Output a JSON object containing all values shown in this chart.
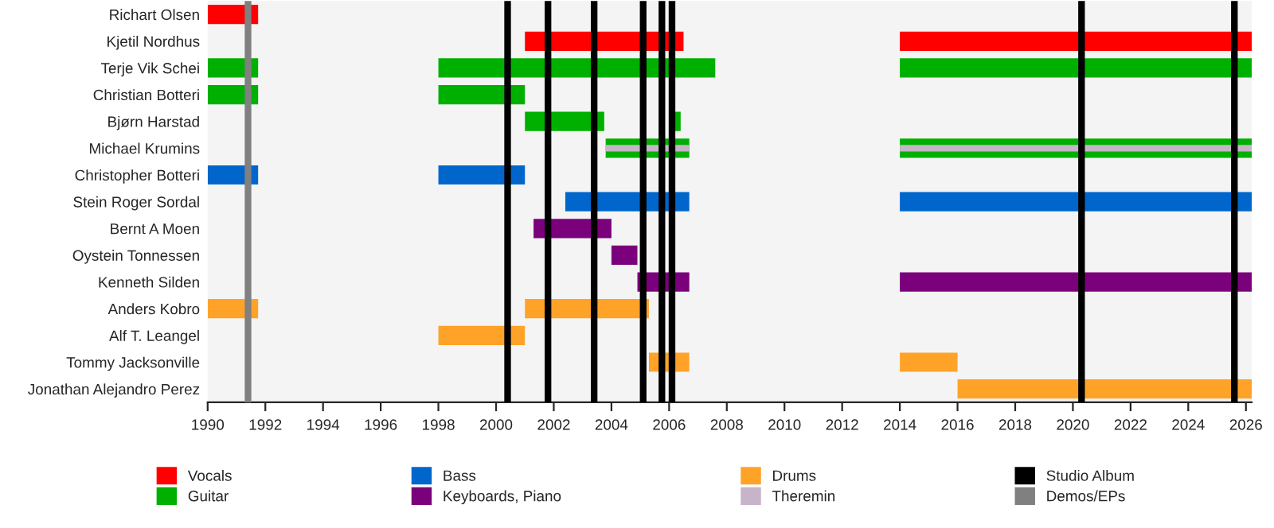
{
  "chart_data": {
    "type": "bar",
    "orientation": "horizontal",
    "categories": [
      "Richart Olsen",
      "Kjetil Nordhus",
      "Terje Vik Schei",
      "Christian Botteri",
      "Bjørn Harstad",
      "Michael Krumins",
      "Christopher Botteri",
      "Stein Roger Sordal",
      "Bernt A Moen",
      "Oystein Tonnessen",
      "Kenneth Silden",
      "Anders Kobro",
      "Alf T. Leangel",
      "Tommy Jacksonville",
      "Jonathan Alejandro Perez"
    ],
    "series": [
      {
        "name": "Vocals",
        "color": "#ff0000",
        "base": [
          1990,
          2001.0,
          null,
          null,
          null,
          null,
          null,
          null,
          null,
          null,
          null,
          null,
          null,
          null,
          null
        ],
        "values": [
          1.75,
          5.5,
          null,
          null,
          null,
          null,
          null,
          null,
          null,
          null,
          null,
          null,
          null,
          null,
          null
        ]
      },
      {
        "name": "Guitar",
        "color": "#00b000",
        "base": [
          null,
          null,
          1990,
          1990,
          2001.0,
          2003.8,
          null,
          null,
          null,
          null,
          null,
          null,
          null,
          null,
          null
        ],
        "values": [
          null,
          null,
          1.75,
          1.75,
          2.75,
          2.9,
          null,
          null,
          null,
          null,
          null,
          null,
          null,
          null,
          null
        ]
      },
      {
        "name": "Bass",
        "color": "#0066cc",
        "base": [
          null,
          null,
          null,
          null,
          null,
          null,
          1990,
          2002.4,
          null,
          null,
          null,
          null,
          null,
          null,
          null
        ],
        "values": [
          null,
          null,
          null,
          null,
          null,
          null,
          1.75,
          4.3,
          null,
          null,
          null,
          null,
          null,
          null,
          null
        ]
      },
      {
        "name": "Keyboards, Piano",
        "color": "#7b007b",
        "base": [
          null,
          null,
          null,
          null,
          null,
          null,
          null,
          null,
          2001.3,
          2004.0,
          2004.9,
          null,
          null,
          null,
          null
        ],
        "values": [
          null,
          null,
          null,
          null,
          null,
          null,
          null,
          null,
          2.7,
          0.9,
          1.8,
          null,
          null,
          null,
          null
        ]
      },
      {
        "name": "Drums",
        "color": "#ffa328",
        "base": [
          null,
          null,
          null,
          null,
          null,
          null,
          null,
          null,
          null,
          null,
          null,
          1990,
          1998.0,
          2005.3,
          2016.0
        ],
        "values": [
          null,
          null,
          null,
          null,
          null,
          null,
          null,
          null,
          null,
          null,
          null,
          1.75,
          3.0,
          1.4,
          10.2
        ]
      },
      {
        "name": "Theremin",
        "color": "#c8b4c8",
        "base": [
          null,
          null,
          null,
          null,
          null,
          2003.8,
          null,
          null,
          null,
          null,
          null,
          null,
          null,
          null,
          null
        ],
        "values": [
          null,
          null,
          null,
          null,
          null,
          2.9,
          null,
          null,
          null,
          null,
          null,
          null,
          null,
          null,
          null
        ]
      },
      {
        "color": "#ff0000",
        "base": [
          null,
          2014.0,
          null,
          null,
          null,
          null,
          null,
          null,
          null,
          null,
          null,
          null,
          null,
          null,
          null
        ],
        "values": [
          null,
          12.2,
          null,
          null,
          null,
          null,
          null,
          null,
          null,
          null,
          null,
          null,
          null,
          null,
          null
        ]
      },
      {
        "color": "#00b000",
        "base": [
          null,
          null,
          1998.0,
          1998.0,
          2006.1,
          2014.0,
          null,
          null,
          null,
          null,
          null,
          null,
          null,
          null,
          null
        ],
        "values": [
          null,
          null,
          9.6,
          3.0,
          0.3,
          12.2,
          null,
          null,
          null,
          null,
          null,
          null,
          null,
          null,
          null
        ]
      },
      {
        "color": "#00b000",
        "base": [
          null,
          null,
          2014.0,
          null,
          null,
          null,
          null,
          null,
          null,
          null,
          null,
          null,
          null,
          null,
          null
        ],
        "values": [
          null,
          null,
          12.2,
          null,
          null,
          null,
          null,
          null,
          null,
          null,
          null,
          null,
          null,
          null,
          null
        ]
      },
      {
        "color": "#0066cc",
        "base": [
          null,
          null,
          null,
          null,
          null,
          null,
          1998.0,
          2014.0,
          null,
          null,
          null,
          null,
          null,
          null,
          null
        ],
        "values": [
          null,
          null,
          null,
          null,
          null,
          null,
          3.0,
          12.2,
          null,
          null,
          null,
          null,
          null,
          null,
          null
        ]
      },
      {
        "color": "#7b007b",
        "base": [
          null,
          null,
          null,
          null,
          null,
          null,
          null,
          null,
          null,
          null,
          2014.0,
          null,
          null,
          null,
          null
        ],
        "values": [
          null,
          null,
          null,
          null,
          null,
          null,
          null,
          null,
          null,
          null,
          12.2,
          null,
          null,
          null,
          null
        ]
      },
      {
        "color": "#ffa328",
        "base": [
          null,
          null,
          null,
          null,
          null,
          null,
          null,
          null,
          null,
          null,
          null,
          2001.0,
          null,
          2014.0,
          null
        ],
        "values": [
          null,
          null,
          null,
          null,
          null,
          null,
          null,
          null,
          null,
          null,
          null,
          4.3,
          null,
          2.0,
          null
        ]
      },
      {
        "color": "#c8b4c8",
        "base": [
          null,
          null,
          null,
          null,
          null,
          2014.0,
          null,
          null,
          null,
          null,
          null,
          null,
          null,
          null,
          null
        ],
        "values": [
          null,
          null,
          null,
          null,
          null,
          12.2,
          null,
          null,
          null,
          null,
          null,
          null,
          null,
          null,
          null
        ]
      }
    ],
    "ref_lines": [
      {
        "axis": "x",
        "value": 1991.4,
        "label": "Demos/EPs",
        "color": "#808080"
      },
      {
        "axis": "x",
        "value": 2000.4,
        "label": "Studio Album",
        "color": "#000000"
      },
      {
        "axis": "x",
        "value": 2001.8,
        "color": "#000000"
      },
      {
        "axis": "x",
        "value": 2003.4,
        "color": "#000000"
      },
      {
        "axis": "x",
        "value": 2005.1,
        "color": "#000000"
      },
      {
        "axis": "x",
        "value": 2005.75,
        "color": "#000000"
      },
      {
        "axis": "x",
        "value": 2006.1,
        "color": "#000000"
      },
      {
        "axis": "x",
        "value": 2020.3,
        "color": "#000000"
      },
      {
        "axis": "x",
        "value": 2025.6,
        "color": "#000000"
      }
    ],
    "xlim": [
      1990,
      2026.2
    ],
    "xticks": [
      1990,
      1992,
      1994,
      1996,
      1998,
      2000,
      2002,
      2004,
      2006,
      2008,
      2010,
      2012,
      2014,
      2016,
      2018,
      2020,
      2022,
      2024,
      2026
    ],
    "legend": "bottom",
    "grid": false
  }
}
